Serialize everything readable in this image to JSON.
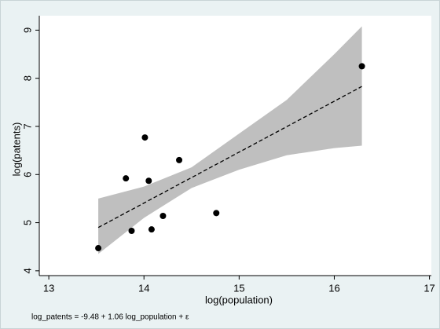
{
  "chart_data": {
    "type": "scatter",
    "xlabel": "log(population)",
    "ylabel": "log(patents)",
    "note": "log_patents =   -9.48 +   1.06 log_population + ε",
    "xlim": [
      12.9,
      17.02
    ],
    "xticks": [
      13,
      14,
      15,
      16,
      17
    ],
    "ylim": [
      3.9,
      9.3
    ],
    "yticks": [
      4,
      5,
      6,
      7,
      8,
      9
    ],
    "points": {
      "color": "#000000",
      "x": [
        13.52,
        13.81,
        13.87,
        14.01,
        14.05,
        14.08,
        14.2,
        14.37,
        14.76,
        16.29
      ],
      "y": [
        4.47,
        5.92,
        4.83,
        6.77,
        5.87,
        4.86,
        5.14,
        6.3,
        5.2,
        8.25
      ]
    },
    "fit": {
      "color": "#000000",
      "x": [
        13.52,
        16.29
      ],
      "y": [
        4.9,
        7.83
      ]
    },
    "band": {
      "color": "#bfbfbf",
      "x": [
        13.52,
        14.0,
        14.5,
        15.0,
        15.5,
        16.0,
        16.29
      ],
      "upper": [
        5.5,
        5.75,
        6.15,
        6.85,
        7.55,
        8.5,
        9.08
      ],
      "lower": [
        4.35,
        5.1,
        5.72,
        6.1,
        6.4,
        6.55,
        6.6
      ]
    }
  }
}
